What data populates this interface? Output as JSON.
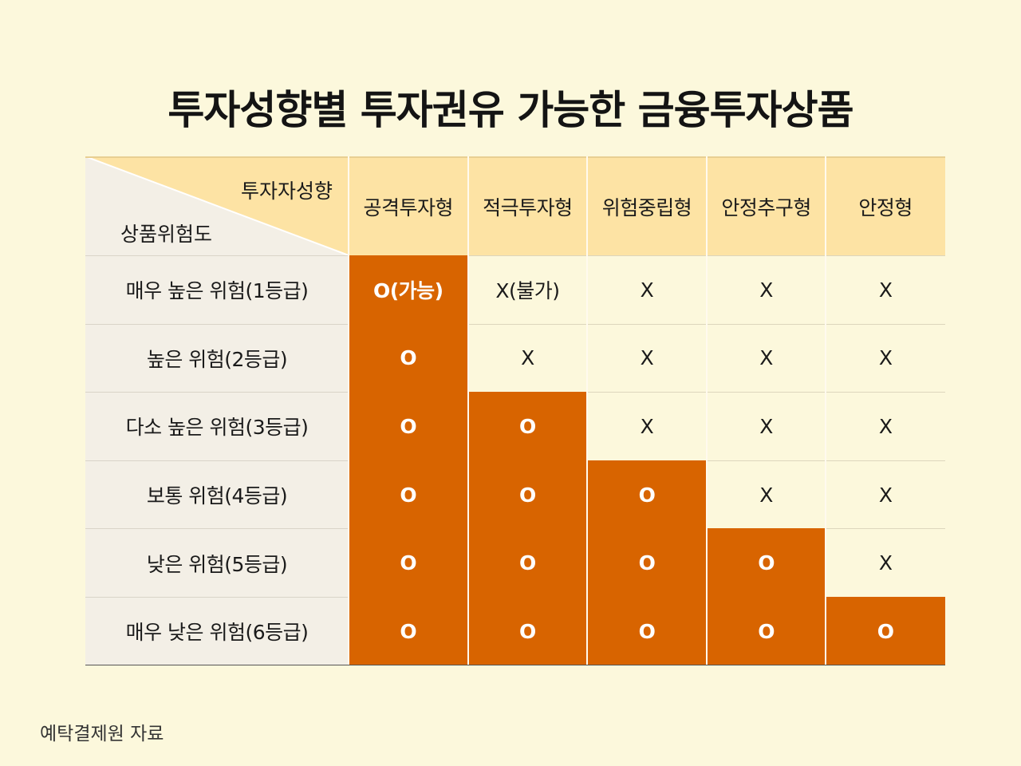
{
  "title": "투자성향별 투자권유 가능한 금융투자상품",
  "corner": {
    "top_label": "투자자성향",
    "bottom_label": "상품위험도"
  },
  "columns": [
    "공격투자형",
    "적극투자형",
    "위험중립형",
    "안정추구형",
    "안정형"
  ],
  "rows": [
    {
      "label": "매우 높은 위험(1등급)",
      "cells": [
        "O(가능)",
        "X(불가)",
        "X",
        "X",
        "X"
      ],
      "allowed": [
        true,
        false,
        false,
        false,
        false
      ]
    },
    {
      "label": "높은 위험(2등급)",
      "cells": [
        "O",
        "X",
        "X",
        "X",
        "X"
      ],
      "allowed": [
        true,
        false,
        false,
        false,
        false
      ]
    },
    {
      "label": "다소 높은 위험(3등급)",
      "cells": [
        "O",
        "O",
        "X",
        "X",
        "X"
      ],
      "allowed": [
        true,
        true,
        false,
        false,
        false
      ]
    },
    {
      "label": "보통 위험(4등급)",
      "cells": [
        "O",
        "O",
        "O",
        "X",
        "X"
      ],
      "allowed": [
        true,
        true,
        true,
        false,
        false
      ]
    },
    {
      "label": "낮은 위험(5등급)",
      "cells": [
        "O",
        "O",
        "O",
        "O",
        "X"
      ],
      "allowed": [
        true,
        true,
        true,
        true,
        false
      ]
    },
    {
      "label": "매우 낮은 위험(6등급)",
      "cells": [
        "O",
        "O",
        "O",
        "O",
        "O"
      ],
      "allowed": [
        true,
        true,
        true,
        true,
        true
      ]
    }
  ],
  "source": "예탁결제원 자료",
  "colors": {
    "background": "#fcf8dc",
    "header": "#fde3a4",
    "highlight": "#d86400",
    "row_label_bg": "#f3efe6"
  }
}
